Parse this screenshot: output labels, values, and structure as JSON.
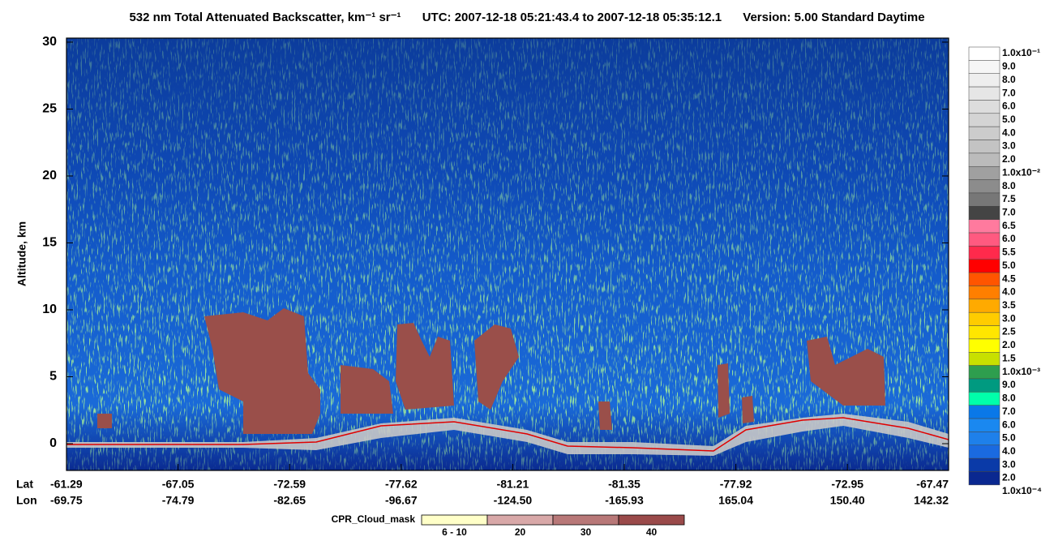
{
  "chart_data": {
    "type": "heatmap",
    "title": "532 nm Total Attenuated Backscatter, km⁻¹ sr⁻¹",
    "subtitle": "UTC: 2007-12-18 05:21:43.4 to 2007-12-18 05:35:12.1",
    "version": "Version: 5.00 Standard Daytime",
    "ylabel": "Altitude, km",
    "ylim": [
      -2,
      30.3
    ],
    "yticks": [
      0,
      5,
      10,
      15,
      20,
      25,
      30
    ],
    "x_row_labels": [
      "Lat",
      "Lon"
    ],
    "lat": [
      "-61.29",
      "-67.05",
      "-72.59",
      "-77.62",
      "-81.21",
      "-81.35",
      "-77.92",
      "-72.95",
      "-67.47"
    ],
    "lon": [
      "-69.75",
      "-74.79",
      "-82.65",
      "-96.67",
      "-124.50",
      "-165.93",
      "165.04",
      "150.40",
      "142.32"
    ],
    "colorbar": {
      "labels": [
        "1.0x10⁻¹",
        "9.0",
        "8.0",
        "7.0",
        "6.0",
        "5.0",
        "4.0",
        "3.0",
        "2.0",
        "1.0x10⁻²",
        "8.0",
        "7.5",
        "7.0",
        "6.5",
        "6.0",
        "5.5",
        "5.0",
        "4.5",
        "4.0",
        "3.5",
        "3.0",
        "2.5",
        "2.0",
        "1.5",
        "1.0x10⁻³",
        "9.0",
        "8.0",
        "7.0",
        "6.0",
        "5.0",
        "4.0",
        "3.0",
        "2.0",
        "1.0x10⁻⁴"
      ],
      "colors": [
        "#ffffff",
        "#f6f6f6",
        "#eeeeee",
        "#e6e6e6",
        "#dddddd",
        "#d4d4d4",
        "#cccccc",
        "#c3c3c3",
        "#bbbbbb",
        "#a0a0a0",
        "#8c8c8c",
        "#777777",
        "#444444",
        "#ff7a9e",
        "#ff5a80",
        "#ff2a4c",
        "#ff0000",
        "#ff5500",
        "#ff7f00",
        "#ffaa00",
        "#ffcc00",
        "#ffe600",
        "#ffff00",
        "#c8e000",
        "#2e9e4e",
        "#009a80",
        "#00ffaa",
        "#0a78e8",
        "#1a88f0",
        "#1e80ea",
        "#1a6ae0",
        "#0a3aa8",
        "#0a2890"
      ]
    },
    "cloud_mask": {
      "label": "CPR_Cloud_mask",
      "categories": [
        "6 - 10",
        "20",
        "30",
        "40"
      ],
      "colors": [
        "#ffffc8",
        "#d8a8a8",
        "#b87878",
        "#9a4a4a"
      ]
    }
  }
}
